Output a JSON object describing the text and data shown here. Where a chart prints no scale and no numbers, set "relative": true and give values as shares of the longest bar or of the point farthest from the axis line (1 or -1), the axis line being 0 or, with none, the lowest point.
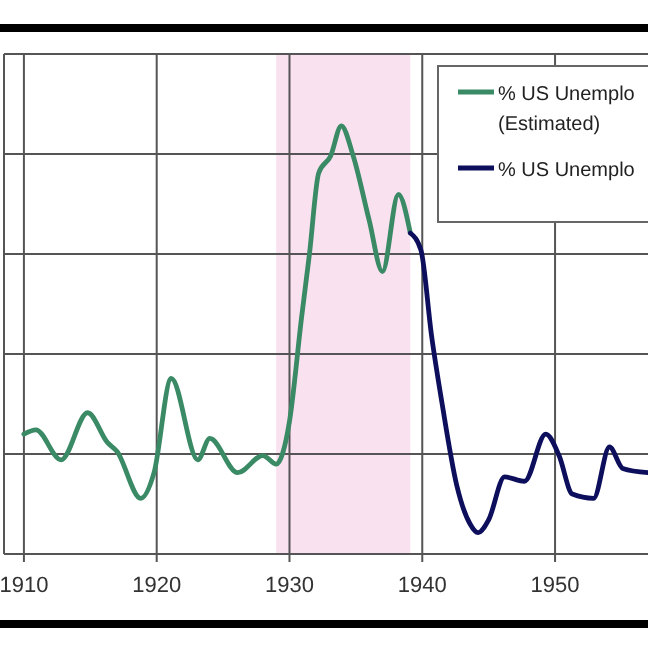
{
  "chart_data": {
    "type": "line",
    "relative": true,
    "xlim": [
      1908.5,
      1957
    ],
    "xticks": [
      1910,
      1920,
      1930,
      1940,
      1950
    ],
    "grid": true,
    "legend": "top right",
    "line_style": "solid",
    "marker": "none",
    "bands": [
      {
        "axis": "x",
        "from": 1929,
        "to": 1939.1,
        "color": "#f9e1f0"
      }
    ],
    "series": [
      {
        "name": "% US Unemplo (Estimated)",
        "color": "#3a8a66",
        "x": [
          1910,
          1910.9,
          1912.8,
          1914.8,
          1916.3,
          1917,
          1918.8,
          1919.8,
          1921.1,
          1923.1,
          1924,
          1926.1,
          1928,
          1929,
          1930,
          1930.9,
          1931.5,
          1932.2,
          1933.1,
          1933.9,
          1934.8,
          1936,
          1937,
          1938.2,
          1939.1
        ],
        "values": [
          0.28,
          0.29,
          0.22,
          0.33,
          0.26,
          0.24,
          0.13,
          0.19,
          0.41,
          0.22,
          0.27,
          0.19,
          0.23,
          0.21,
          0.31,
          0.55,
          0.7,
          0.89,
          0.93,
          1.0,
          0.93,
          0.78,
          0.66,
          0.84,
          0.75
        ]
      },
      {
        "name": "% US Unemplo",
        "color": "#0d0f5c",
        "x": [
          1939.1,
          1939.9,
          1940.7,
          1941.5,
          1942.6,
          1943.6,
          1944.2,
          1945,
          1946.2,
          1947.7,
          1949.3,
          1950.3,
          1951.3,
          1952.9,
          1954.1,
          1955.1,
          1957
        ],
        "values": [
          0.75,
          0.71,
          0.51,
          0.35,
          0.16,
          0.07,
          0.05,
          0.08,
          0.18,
          0.17,
          0.28,
          0.23,
          0.14,
          0.13,
          0.25,
          0.2,
          0.19
        ]
      }
    ]
  }
}
